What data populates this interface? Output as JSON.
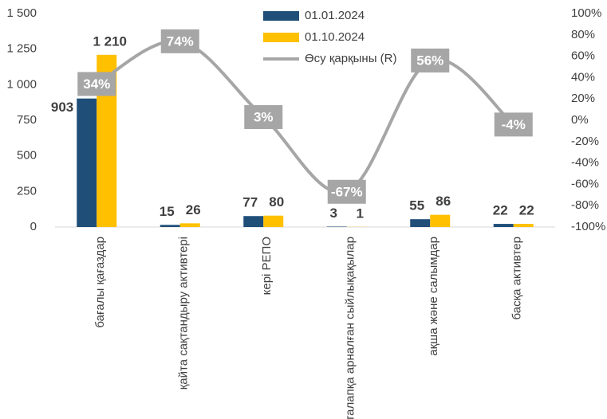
{
  "chart_data": {
    "type": "bar_line",
    "categories": [
      "бағалы қағаздар",
      "қайта сақтандыру активтері",
      "кері РЕПО",
      "талапқа арналған сыйлықақылар",
      "ақша және салымдар",
      "басқа активтер"
    ],
    "series": [
      {
        "name": "01.01.2024",
        "color": "#1f4e79",
        "values": [
          903,
          15,
          77,
          3,
          55,
          22
        ]
      },
      {
        "name": "01.10.2024",
        "color": "#ffc000",
        "values": [
          1210,
          26,
          80,
          1,
          86,
          22
        ],
        "value_labels": [
          "1 210",
          "26",
          "80",
          "1",
          "86",
          "22"
        ]
      },
      {
        "name": "Өсу қарқыны (R)",
        "color": "#a6a6a6",
        "axis": "y2",
        "values": [
          34,
          74,
          3,
          -67,
          56,
          -4
        ],
        "value_labels": [
          "34%",
          "74%",
          "3%",
          "-67%",
          "56%",
          "-4%"
        ]
      }
    ],
    "ylim": [
      0,
      1500
    ],
    "yticks": [
      0,
      250,
      500,
      750,
      {
        "value": 1000,
        "label": "1 000"
      },
      {
        "value": 1250,
        "label": "1 250"
      },
      {
        "value": 1500,
        "label": "1 500"
      }
    ],
    "y2lim": [
      -100,
      100
    ],
    "y2ticks": [
      {
        "value": -100,
        "label": "-100%"
      },
      {
        "value": -80,
        "label": "-80%"
      },
      {
        "value": -60,
        "label": "-60%"
      },
      {
        "value": -40,
        "label": "-40%"
      },
      {
        "value": -20,
        "label": "-20%"
      },
      {
        "value": 0,
        "label": "0%"
      },
      {
        "value": 20,
        "label": "20%"
      },
      {
        "value": 40,
        "label": "40%"
      },
      {
        "value": 60,
        "label": "60%"
      },
      {
        "value": 80,
        "label": "80%"
      },
      {
        "value": 100,
        "label": "100%"
      }
    ],
    "grid": false
  }
}
